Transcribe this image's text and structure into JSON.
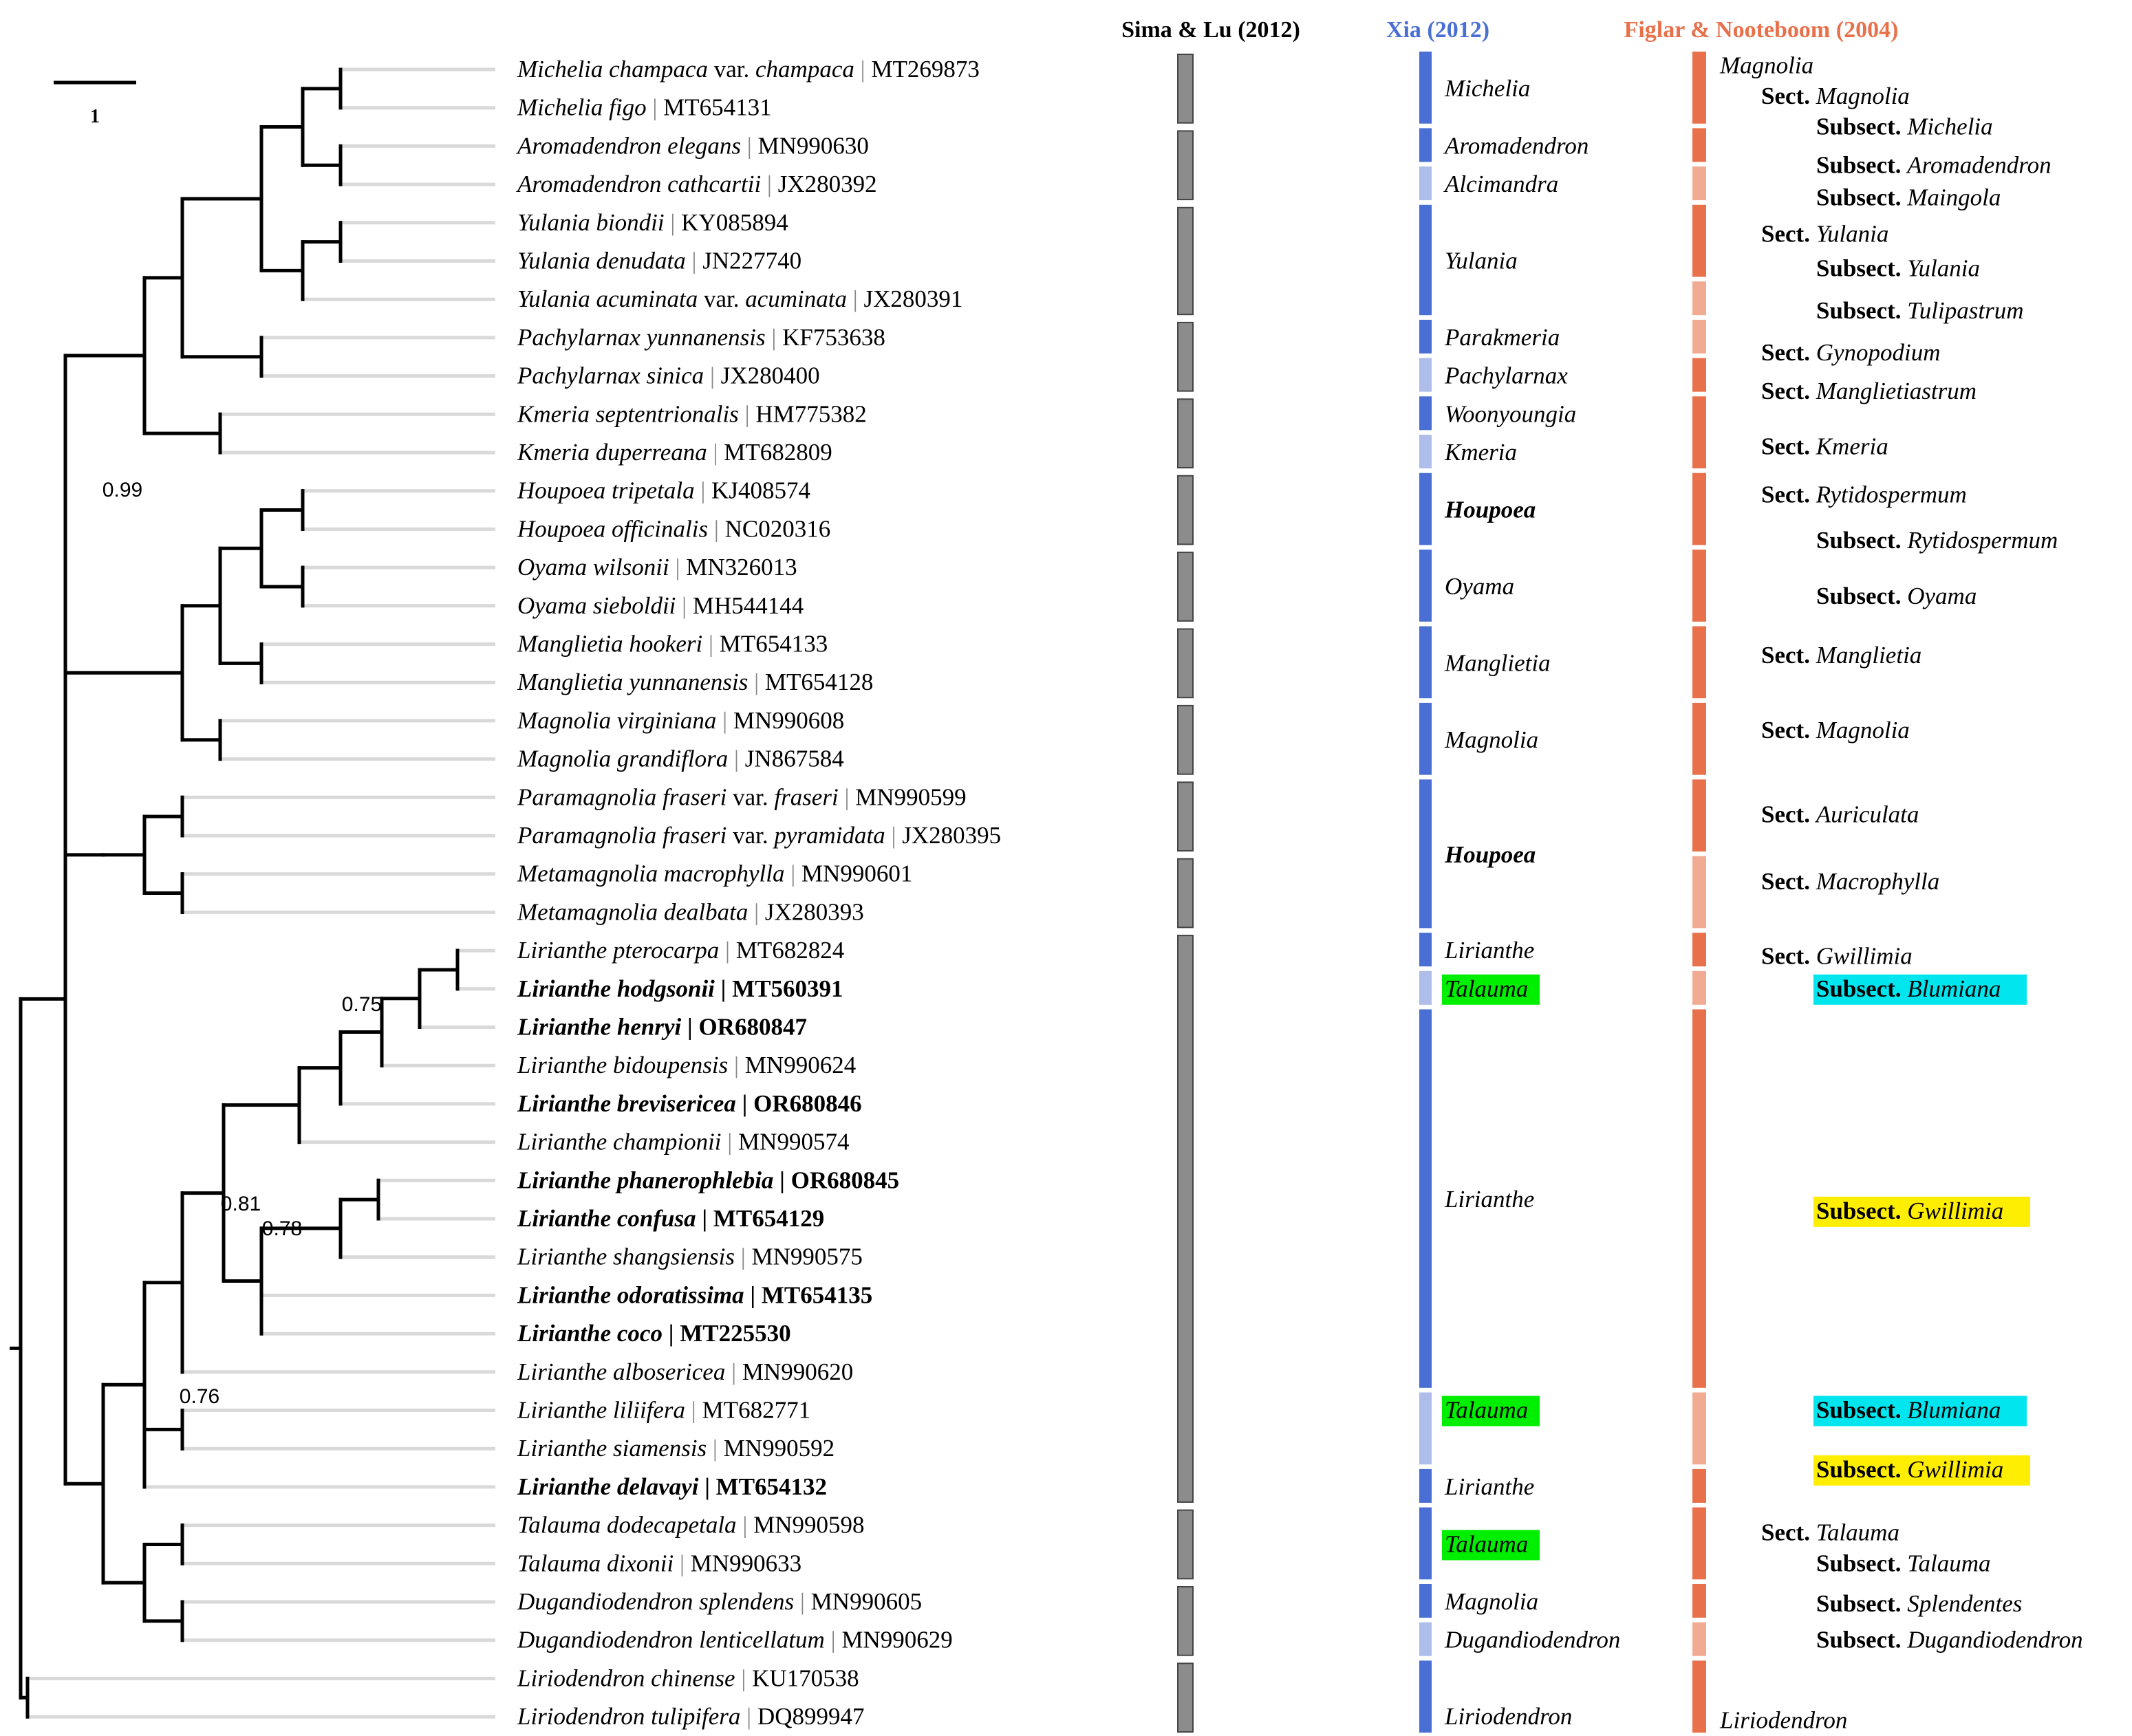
{
  "headers": {
    "sima": "Sima & Lu (2012)",
    "xia": "Xia (2012)",
    "figlar": "Figlar & Nooteboom (2004)"
  },
  "scale_bar": {
    "label": "1"
  },
  "colors": {
    "tree": "#000000",
    "tip_line": "#d9d9d9",
    "sima_bar": "#8c8c8c",
    "xia_dark": "#4a6fd4",
    "xia_light": "#aebde9",
    "figlar_dark": "#e8704a",
    "figlar_light": "#f2ab93",
    "highlight_green": "#00ee00",
    "highlight_cyan": "#00e5ee",
    "highlight_yellow": "#ffee00",
    "xia_header": "#4a6fd4",
    "figlar_header": "#e8704a"
  },
  "taxa": [
    {
      "genus": "Michelia champaca",
      "infra_rank": "var.",
      "infra_name": "champaca",
      "acc": "MT269873",
      "bold": false
    },
    {
      "genus": "Michelia figo",
      "acc": "MT654131",
      "bold": false
    },
    {
      "genus": "Aromadendron elegans",
      "acc": "MN990630",
      "bold": false
    },
    {
      "genus": "Aromadendron cathcartii",
      "acc": "JX280392",
      "bold": false
    },
    {
      "genus": "Yulania biondii",
      "acc": "KY085894",
      "bold": false
    },
    {
      "genus": "Yulania denudata",
      "acc": "JN227740",
      "bold": false
    },
    {
      "genus": "Yulania acuminata",
      "infra_rank": "var.",
      "infra_name": "acuminata",
      "acc": "JX280391",
      "bold": false
    },
    {
      "genus": "Pachylarnax yunnanensis",
      "acc": "KF753638",
      "bold": false
    },
    {
      "genus": "Pachylarnax sinica",
      "acc": "JX280400",
      "bold": false
    },
    {
      "genus": "Kmeria septentrionalis",
      "acc": "HM775382",
      "bold": false
    },
    {
      "genus": "Kmeria duperreana",
      "acc": "MT682809",
      "bold": false
    },
    {
      "genus": "Houpoea tripetala",
      "acc": "KJ408574",
      "bold": false
    },
    {
      "genus": "Houpoea officinalis",
      "acc": "NC020316",
      "bold": false
    },
    {
      "genus": "Oyama wilsonii",
      "acc": "MN326013",
      "bold": false
    },
    {
      "genus": "Oyama sieboldii",
      "acc": "MH544144",
      "bold": false
    },
    {
      "genus": "Manglietia hookeri",
      "acc": "MT654133",
      "bold": false
    },
    {
      "genus": "Manglietia yunnanensis",
      "acc": "MT654128",
      "bold": false
    },
    {
      "genus": "Magnolia virginiana",
      "acc": "MN990608",
      "bold": false
    },
    {
      "genus": "Magnolia grandiflora",
      "acc": "JN867584",
      "bold": false
    },
    {
      "genus": "Paramagnolia fraseri",
      "infra_rank": "var.",
      "infra_name": "fraseri",
      "acc": "MN990599",
      "bold": false
    },
    {
      "genus": "Paramagnolia fraseri",
      "infra_rank": "var.",
      "infra_name": "pyramidata",
      "acc": "JX280395",
      "bold": false
    },
    {
      "genus": "Metamagnolia macrophylla",
      "acc": "MN990601",
      "bold": false
    },
    {
      "genus": "Metamagnolia dealbata",
      "acc": "JX280393",
      "bold": false
    },
    {
      "genus": "Lirianthe pterocarpa",
      "acc": "MT682824",
      "bold": false
    },
    {
      "genus": "Lirianthe hodgsonii",
      "acc": "MT560391",
      "bold": true
    },
    {
      "genus": "Lirianthe henryi",
      "acc": "OR680847",
      "bold": true
    },
    {
      "genus": "Lirianthe bidoupensis",
      "acc": "MN990624",
      "bold": false
    },
    {
      "genus": "Lirianthe brevisericea",
      "acc": "OR680846",
      "bold": true
    },
    {
      "genus": "Lirianthe championii",
      "acc": "MN990574",
      "bold": false
    },
    {
      "genus": "Lirianthe phanerophlebia",
      "acc": "OR680845",
      "bold": true
    },
    {
      "genus": "Lirianthe confusa",
      "acc": "MT654129",
      "bold": true
    },
    {
      "genus": "Lirianthe shangsiensis",
      "acc": "MN990575",
      "bold": false
    },
    {
      "genus": "Lirianthe odoratissima",
      "acc": "MT654135",
      "bold": true
    },
    {
      "genus": "Lirianthe coco",
      "acc": "MT225530",
      "bold": true
    },
    {
      "genus": "Lirianthe albosericea",
      "acc": "MN990620",
      "bold": false
    },
    {
      "genus": "Lirianthe liliifera",
      "acc": "MT682771",
      "bold": false
    },
    {
      "genus": "Lirianthe siamensis",
      "acc": "MN990592",
      "bold": false
    },
    {
      "genus": "Lirianthe delavayi",
      "acc": "MT654132",
      "bold": true
    },
    {
      "genus": "Talauma dodecapetala",
      "acc": "MN990598",
      "bold": false
    },
    {
      "genus": "Talauma dixonii",
      "acc": "MN990633",
      "bold": false
    },
    {
      "genus": "Dugandiodendron splendens",
      "acc": "MN990605",
      "bold": false
    },
    {
      "genus": "Dugandiodendron lenticellatum",
      "acc": "MN990629",
      "bold": false
    },
    {
      "genus": "Liriodendron chinense",
      "acc": "KU170538",
      "bold": false
    },
    {
      "genus": "Liriodendron tulipifera",
      "acc": "DQ899947",
      "bold": false
    }
  ],
  "support_values": [
    "0.99",
    "0.75",
    "0.81",
    "0.78",
    "0.76"
  ],
  "sima_groups": [
    {
      "from": 0,
      "to": 1
    },
    {
      "from": 2,
      "to": 3
    },
    {
      "from": 4,
      "to": 6
    },
    {
      "from": 7,
      "to": 8
    },
    {
      "from": 9,
      "to": 10
    },
    {
      "from": 11,
      "to": 12
    },
    {
      "from": 13,
      "to": 14
    },
    {
      "from": 15,
      "to": 16
    },
    {
      "from": 17,
      "to": 18
    },
    {
      "from": 19,
      "to": 20
    },
    {
      "from": 21,
      "to": 22
    },
    {
      "from": 23,
      "to": 37
    },
    {
      "from": 38,
      "to": 39
    },
    {
      "from": 40,
      "to": 41
    },
    {
      "from": 42,
      "to": 43
    }
  ],
  "xia_bars": [
    {
      "from": 0,
      "to": 1,
      "shade": "dark"
    },
    {
      "from": 2,
      "to": 2,
      "shade": "dark"
    },
    {
      "from": 3,
      "to": 3,
      "shade": "light"
    },
    {
      "from": 4,
      "to": 6,
      "shade": "dark"
    },
    {
      "from": 7,
      "to": 7,
      "shade": "dark"
    },
    {
      "from": 8,
      "to": 8,
      "shade": "light"
    },
    {
      "from": 9,
      "to": 9,
      "shade": "dark"
    },
    {
      "from": 10,
      "to": 10,
      "shade": "light"
    },
    {
      "from": 11,
      "to": 12,
      "shade": "dark"
    },
    {
      "from": 13,
      "to": 14,
      "shade": "dark"
    },
    {
      "from": 15,
      "to": 16,
      "shade": "dark"
    },
    {
      "from": 17,
      "to": 18,
      "shade": "dark"
    },
    {
      "from": 19,
      "to": 22,
      "shade": "dark"
    },
    {
      "from": 23,
      "to": 23,
      "shade": "dark"
    },
    {
      "from": 24,
      "to": 24,
      "shade": "light"
    },
    {
      "from": 25,
      "to": 34,
      "shade": "dark"
    },
    {
      "from": 35,
      "to": 36,
      "shade": "light"
    },
    {
      "from": 37,
      "to": 37,
      "shade": "dark"
    },
    {
      "from": 38,
      "to": 39,
      "shade": "dark"
    },
    {
      "from": 40,
      "to": 40,
      "shade": "dark"
    },
    {
      "from": 41,
      "to": 41,
      "shade": "light"
    },
    {
      "from": 42,
      "to": 43,
      "shade": "dark"
    }
  ],
  "xia_labels": [
    {
      "text": "Michelia",
      "pos": 0.5
    },
    {
      "text": "Aromadendron",
      "pos": 2
    },
    {
      "text": "Alcimandra",
      "pos": 3
    },
    {
      "text": "Yulania",
      "pos": 5
    },
    {
      "text": "Parakmeria",
      "pos": 7
    },
    {
      "text": "Pachylarnax",
      "pos": 8
    },
    {
      "text": "Woonyoungia",
      "pos": 9
    },
    {
      "text": "Kmeria",
      "pos": 10
    },
    {
      "text": "Houpoea",
      "pos": 11.5,
      "bold": true
    },
    {
      "text": "Oyama",
      "pos": 13.5
    },
    {
      "text": "Manglietia",
      "pos": 15.5
    },
    {
      "text": "Magnolia",
      "pos": 17.5
    },
    {
      "text": "Houpoea",
      "pos": 20.5,
      "bold": true
    },
    {
      "text": "Lirianthe",
      "pos": 23
    },
    {
      "text": "Talauma",
      "pos": 24,
      "highlight": "green"
    },
    {
      "text": "Lirianthe",
      "pos": 29.5
    },
    {
      "text": "Talauma",
      "pos": 35,
      "highlight": "green"
    },
    {
      "text": "Lirianthe",
      "pos": 37
    },
    {
      "text": "Talauma",
      "pos": 38.5,
      "highlight": "green"
    },
    {
      "text": "Magnolia",
      "pos": 40
    },
    {
      "text": "Dugandiodendron",
      "pos": 41
    },
    {
      "text": "Liriodendron",
      "pos": 43
    }
  ],
  "figlar_bars": [
    {
      "from": 0,
      "to": 1,
      "shade": "dark"
    },
    {
      "from": 2,
      "to": 2,
      "shade": "dark"
    },
    {
      "from": 3,
      "to": 3,
      "shade": "light"
    },
    {
      "from": 4,
      "to": 5,
      "shade": "dark"
    },
    {
      "from": 6,
      "to": 6,
      "shade": "light"
    },
    {
      "from": 7,
      "to": 7,
      "shade": "light"
    },
    {
      "from": 8,
      "to": 8,
      "shade": "dark"
    },
    {
      "from": 9,
      "to": 10,
      "shade": "dark"
    },
    {
      "from": 11,
      "to": 12,
      "shade": "dark"
    },
    {
      "from": 13,
      "to": 14,
      "shade": "dark"
    },
    {
      "from": 15,
      "to": 16,
      "shade": "dark"
    },
    {
      "from": 17,
      "to": 18,
      "shade": "dark"
    },
    {
      "from": 19,
      "to": 20,
      "shade": "dark"
    },
    {
      "from": 21,
      "to": 22,
      "shade": "light"
    },
    {
      "from": 23,
      "to": 23,
      "shade": "dark"
    },
    {
      "from": 24,
      "to": 24,
      "shade": "light"
    },
    {
      "from": 25,
      "to": 34,
      "shade": "dark"
    },
    {
      "from": 35,
      "to": 36,
      "shade": "light"
    },
    {
      "from": 37,
      "to": 37,
      "shade": "dark"
    },
    {
      "from": 38,
      "to": 39,
      "shade": "dark"
    },
    {
      "from": 40,
      "to": 40,
      "shade": "dark"
    },
    {
      "from": 41,
      "to": 41,
      "shade": "light"
    },
    {
      "from": 42,
      "to": 43,
      "shade": "dark"
    }
  ],
  "figlar_labels": [
    {
      "level": 0,
      "name": "Magnolia",
      "pos": -0.1
    },
    {
      "level": 1,
      "rank": "Sect.",
      "name": "Magnolia",
      "pos": 0.7
    },
    {
      "level": 2,
      "rank": "Subsect.",
      "name": "Michelia",
      "pos": 1.5
    },
    {
      "level": 2,
      "rank": "Subsect.",
      "name": "Aromadendron",
      "pos": 2.5
    },
    {
      "level": 2,
      "rank": "Subsect.",
      "name": "Maingola",
      "pos": 3.35
    },
    {
      "level": 1,
      "rank": "Sect.",
      "name": "Yulania",
      "pos": 4.3
    },
    {
      "level": 2,
      "rank": "Subsect.",
      "name": "Yulania",
      "pos": 5.2
    },
    {
      "level": 2,
      "rank": "Subsect.",
      "name": "Tulipastrum",
      "pos": 6.3
    },
    {
      "level": 1,
      "rank": "Sect.",
      "name": "Gynopodium",
      "pos": 7.4
    },
    {
      "level": 1,
      "rank": "Sect.",
      "name": "Manglietiastrum",
      "pos": 8.4
    },
    {
      "level": 1,
      "rank": "Sect.",
      "name": "Kmeria",
      "pos": 9.85
    },
    {
      "level": 1,
      "rank": "Sect.",
      "name": "Rytidospermum",
      "pos": 11.1
    },
    {
      "level": 2,
      "rank": "Subsect.",
      "name": "Rytidospermum",
      "pos": 12.3
    },
    {
      "level": 2,
      "rank": "Subsect.",
      "name": "Oyama",
      "pos": 13.75
    },
    {
      "level": 1,
      "rank": "Sect.",
      "name": "Manglietia",
      "pos": 15.3
    },
    {
      "level": 1,
      "rank": "Sect.",
      "name": "Magnolia",
      "pos": 17.25
    },
    {
      "level": 1,
      "rank": "Sect.",
      "name": "Auriculata",
      "pos": 19.45
    },
    {
      "level": 1,
      "rank": "Sect.",
      "name": "Macrophylla",
      "pos": 21.2
    },
    {
      "level": 1,
      "rank": "Sect.",
      "name": "Gwillimia",
      "pos": 23.15
    },
    {
      "level": 2,
      "rank": "Subsect.",
      "name": "Blumiana",
      "pos": 24,
      "highlight": "cyan"
    },
    {
      "level": 2,
      "rank": "Subsect.",
      "name": "Gwillimia",
      "pos": 29.8,
      "highlight": "yellow"
    },
    {
      "level": 2,
      "rank": "Subsect.",
      "name": "Blumiana",
      "pos": 35,
      "highlight": "cyan"
    },
    {
      "level": 2,
      "rank": "Subsect.",
      "name": "Gwillimia",
      "pos": 36.55,
      "highlight": "yellow"
    },
    {
      "level": 1,
      "rank": "Sect.",
      "name": "Talauma",
      "pos": 38.2
    },
    {
      "level": 2,
      "rank": "Subsect.",
      "name": "Talauma",
      "pos": 39
    },
    {
      "level": 2,
      "rank": "Subsect.",
      "name": "Splendentes",
      "pos": 40.05
    },
    {
      "level": 2,
      "rank": "Subsect.",
      "name": "Dugandiodendron",
      "pos": 41
    },
    {
      "level": 0,
      "name": "Liriodendron",
      "pos": 43.1
    }
  ]
}
